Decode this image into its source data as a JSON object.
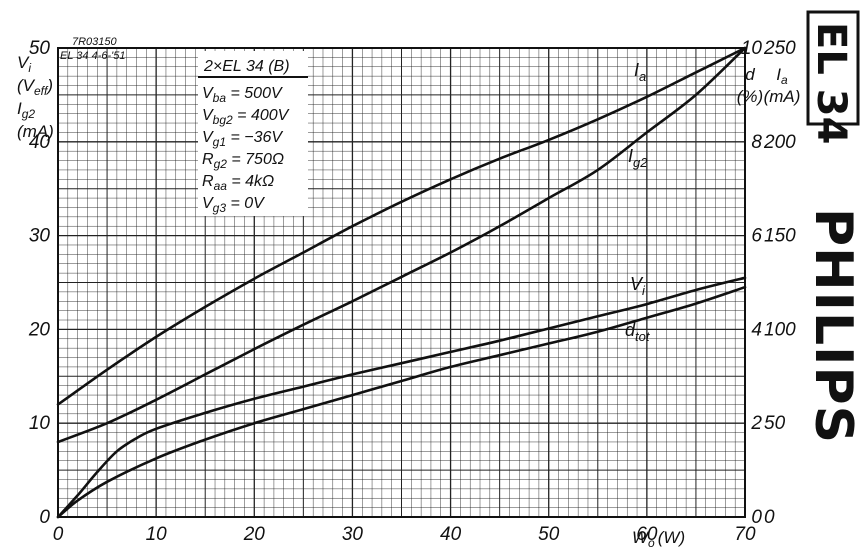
{
  "chart_data": {
    "type": "line",
    "title": "",
    "x": {
      "label": "W",
      "label_sub": "o",
      "unit": "(W)",
      "range": [
        0,
        70
      ],
      "ticks": [
        0,
        10,
        20,
        30,
        40,
        50,
        60,
        70
      ]
    },
    "y_left": {
      "ticks": [
        0,
        10,
        20,
        30,
        40,
        50
      ],
      "range": [
        0,
        50
      ],
      "labels": [
        {
          "main": "V",
          "sub": "i"
        },
        {
          "main": "(V",
          "sub": "eff",
          "tail": ")"
        },
        {
          "main": "I",
          "sub": "g2"
        },
        {
          "main": "(mA)"
        }
      ]
    },
    "y_right_d": {
      "ticks": [
        0,
        2,
        4,
        6,
        8,
        10
      ],
      "range": [
        0,
        10
      ],
      "labels": [
        {
          "main": "d"
        },
        {
          "main": "(%)"
        }
      ]
    },
    "y_right_ia": {
      "ticks": [
        0,
        50,
        100,
        150,
        200,
        250
      ],
      "range": [
        0,
        250
      ],
      "labels": [
        {
          "main": "I",
          "sub": "a"
        },
        {
          "main": "(mA)"
        }
      ]
    },
    "grid": true,
    "series": [
      {
        "name": "I",
        "sub": "a",
        "axis": "ia",
        "x": [
          0,
          5,
          10,
          15,
          20,
          25,
          30,
          35,
          40,
          45,
          50,
          55,
          60,
          65,
          70
        ],
        "y": [
          60,
          78.5,
          96,
          112,
          127,
          141,
          155,
          168,
          180,
          191,
          201,
          212,
          224,
          237,
          250
        ]
      },
      {
        "name": "I",
        "sub": "g2",
        "axis": "left",
        "x": [
          0,
          5,
          10,
          15,
          20,
          25,
          30,
          35,
          40,
          45,
          50,
          55,
          60,
          65,
          70
        ],
        "y": [
          8,
          10,
          12.5,
          15.2,
          17.9,
          20.5,
          23,
          25.6,
          28.2,
          31,
          34,
          37,
          41,
          45,
          50
        ]
      },
      {
        "name": "V",
        "sub": "i",
        "axis": "left",
        "x": [
          0,
          2,
          4,
          6,
          8,
          10,
          15,
          20,
          25,
          30,
          35,
          40,
          45,
          50,
          55,
          60,
          65,
          70
        ],
        "y": [
          0,
          2.3,
          4.8,
          7,
          8.4,
          9.4,
          11.1,
          12.6,
          13.9,
          15.2,
          16.4,
          17.6,
          18.8,
          20.1,
          21.4,
          22.7,
          24.2,
          25.5
        ]
      },
      {
        "name": "d",
        "sub": "tot",
        "axis": "d",
        "x": [
          0,
          2,
          5,
          10,
          15,
          20,
          25,
          30,
          35,
          40,
          45,
          50,
          55,
          60,
          65,
          70
        ],
        "y": [
          0,
          0.35,
          0.75,
          1.25,
          1.65,
          2.0,
          2.3,
          2.6,
          2.9,
          3.2,
          3.45,
          3.7,
          3.95,
          4.25,
          4.55,
          4.9
        ]
      }
    ],
    "annotations": {
      "ref_line1": "7R03150",
      "ref_line2": "EL 34  4-6-'51",
      "conditions_title": "2×EL 34 (B)",
      "conditions": [
        {
          "main": "V",
          "sub": "ba",
          "rest": " = 500V"
        },
        {
          "main": "V",
          "sub": "bg2",
          "rest": " = 400V"
        },
        {
          "main": "V",
          "sub": "g1",
          "rest": " = −36V"
        },
        {
          "main": "R",
          "sub": "g2",
          "rest": " = 750Ω"
        },
        {
          "main": "R",
          "sub": "aa",
          "rest": " = 4kΩ"
        },
        {
          "main": "V",
          "sub": "g3",
          "rest": " = 0V"
        }
      ]
    }
  },
  "tube_label": "EL 34",
  "brand": "PHILIPS"
}
